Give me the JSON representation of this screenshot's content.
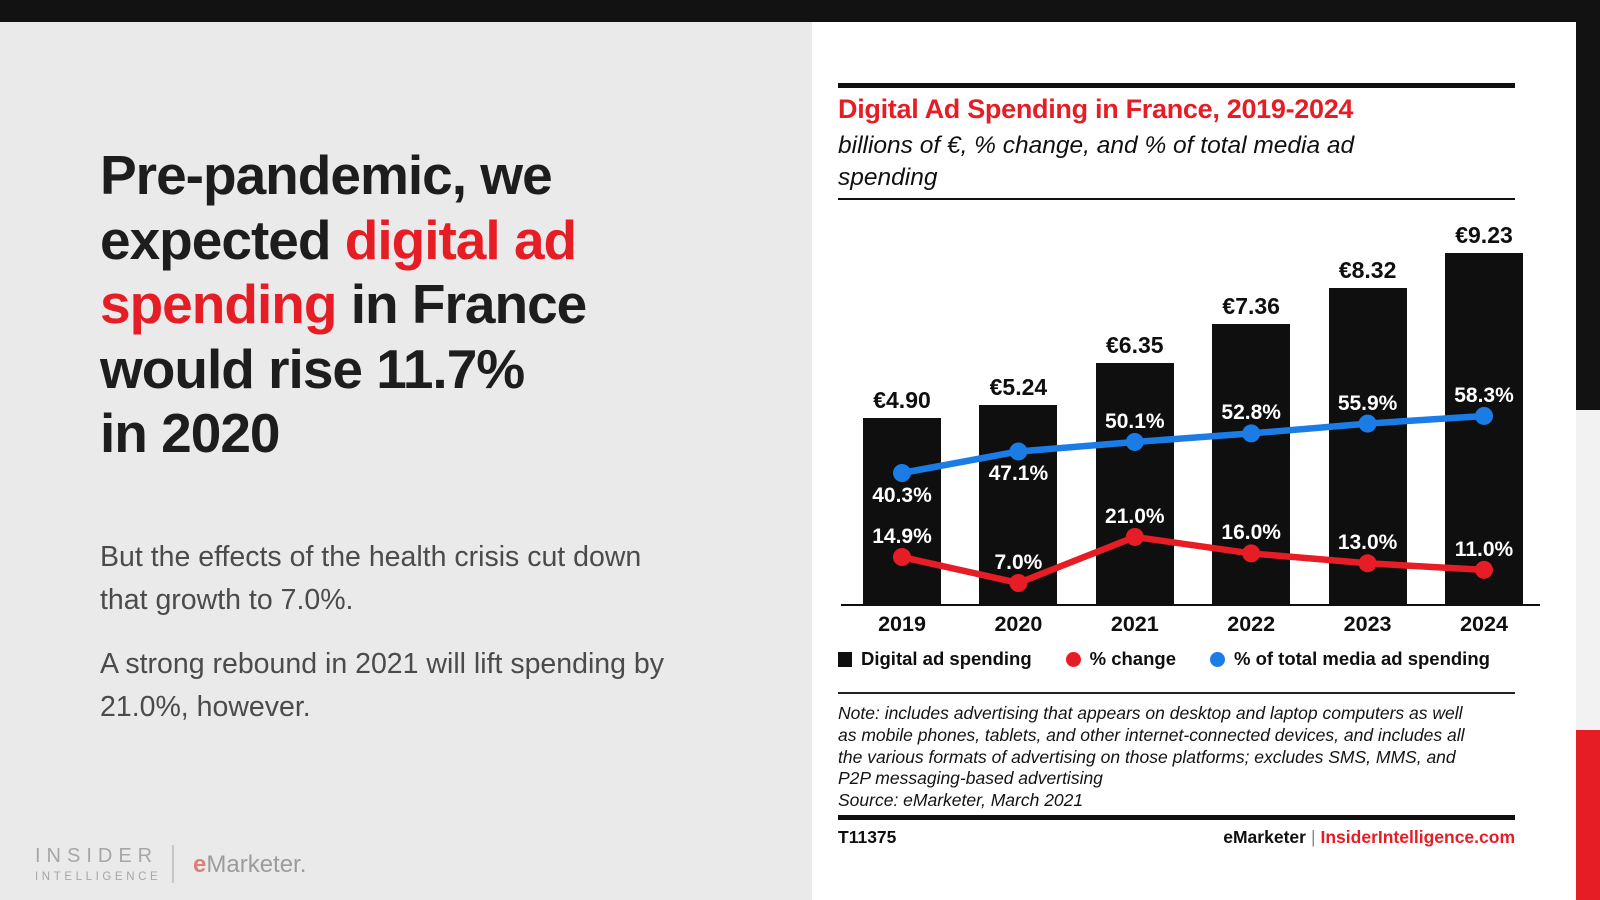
{
  "colors": {
    "brand_red": "#e71d25",
    "line_blue": "#1b7ce6",
    "bar_black": "#0f0f0f",
    "left_panel_gray": "#eaeaea",
    "body_gray": "#4b4b4b"
  },
  "left_panel": {
    "headline_lines": [
      [
        {
          "t": "Pre-pandemic, we",
          "red": false
        }
      ],
      [
        {
          "t": "expected ",
          "red": false
        },
        {
          "t": "digital ad",
          "red": true
        }
      ],
      [
        {
          "t": "spending",
          "red": true
        },
        {
          "t": " in France",
          "red": false
        }
      ],
      [
        {
          "t": "would rise 11.7%",
          "red": false
        }
      ],
      [
        {
          "t": "in 2020",
          "red": false
        }
      ]
    ],
    "paragraphs": [
      [
        "But the effects of the health crisis cut down",
        "that growth to 7.0%."
      ],
      [
        "A strong rebound in 2021 will lift spending by",
        "21.0%, however."
      ]
    ],
    "logo": {
      "insider_line1": "INSIDER",
      "insider_line2": "INTELLIGENCE",
      "emarketer_e": "e",
      "emarketer_rest": "Marketer."
    }
  },
  "chart_panel": {
    "title": "Digital Ad Spending in France, 2019-2024",
    "subtitle": "billions of €, % change, and % of total media ad spending",
    "subtitle_lines": [
      "billions of €, % change, and % of total media ad",
      "spending"
    ],
    "note_lines": [
      "Note: includes advertising that appears on desktop and laptop computers as well",
      "as mobile phones, tablets, and other internet-connected devices, and includes all",
      "the various formats of advertising on those platforms; excludes SMS, MMS, and",
      "P2P messaging-based advertising"
    ],
    "source": "Source: eMarketer, March 2021",
    "chart_id": "T11375",
    "footer_brand": "eMarketer",
    "footer_sep": "|",
    "footer_site": "InsiderIntelligence.com"
  },
  "chart_data": {
    "type": "bar",
    "subtype": "combo-bar-with-lines",
    "title": "Digital Ad Spending in France, 2019-2024",
    "subtitle": "billions of €, % change, and % of total media ad spending",
    "categories": [
      "2019",
      "2020",
      "2021",
      "2022",
      "2023",
      "2024"
    ],
    "series": [
      {
        "name": "Digital ad spending",
        "type": "bar",
        "unit": "billions of €",
        "values": [
          4.9,
          5.24,
          6.35,
          7.36,
          8.32,
          9.23
        ],
        "color": "#0f0f0f",
        "label_format": "euro"
      },
      {
        "name": "% change",
        "type": "line",
        "unit": "%",
        "values": [
          14.9,
          7.0,
          21.0,
          16.0,
          13.0,
          11.0
        ],
        "color": "#e71d25",
        "label_format": "pct"
      },
      {
        "name": "% of total media ad spending",
        "type": "line",
        "unit": "%",
        "values": [
          40.3,
          47.1,
          50.1,
          52.8,
          55.9,
          58.3
        ],
        "color": "#1b7ce6",
        "label_format": "pct"
      }
    ],
    "xlabel": "",
    "ylabel": "",
    "grid": false,
    "legend_position": "bottom",
    "bar_axis_range": [
      0,
      10.4
    ]
  }
}
